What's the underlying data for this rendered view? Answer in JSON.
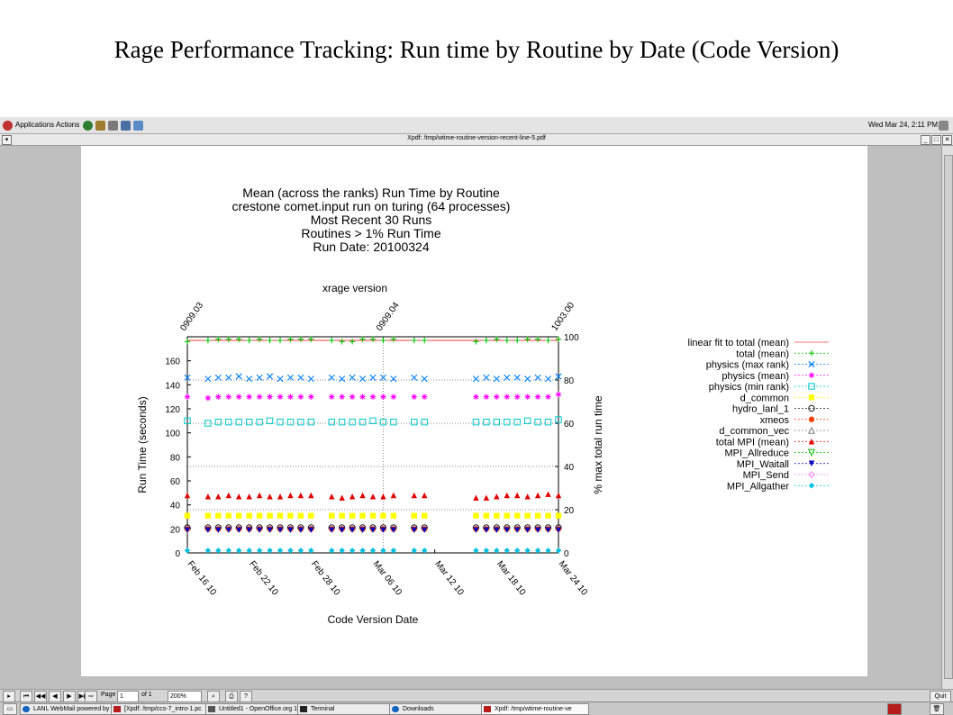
{
  "slide": {
    "title": "Rage Performance Tracking: Run time by Routine by Date (Code Version)"
  },
  "desktop": {
    "menu": [
      "Applications",
      "Actions"
    ],
    "clock": "Wed Mar 24,  2:11 PM"
  },
  "window": {
    "title": "Xpdf: /tmp/wtime-routine-version-recent-line-5.pdf"
  },
  "viewer": {
    "page_label": "Page",
    "page_value": "1",
    "of_label": "of 1",
    "zoom": "200%",
    "help": "?",
    "quit": "Quit"
  },
  "taskbar": {
    "items": [
      "LANL WebMail powered by",
      "[Xpdf: /tmp/ccs-7_intro-1.pc",
      "Untitled1 - OpenOffice.org 1",
      "Terminal",
      "Downloads",
      "Xpdf: /tmp/wtime-routine-ve"
    ]
  },
  "chart_data": {
    "type": "scatter",
    "title_lines": [
      "Mean (across the ranks) Run Time by Routine",
      "crestone comet.input run on turing (64 processes)",
      "Most Recent 30 Runs",
      "Routines > 1% Run Time",
      "Run Date: 20100324"
    ],
    "top_axis_label": "xrage version",
    "top_ticks": [
      "0909.03",
      "0909.04",
      "1003.00"
    ],
    "xlabel": "Code Version Date",
    "ylabel": "Run Time (seconds)",
    "y2label": "% max total run time",
    "x_ticks": [
      "Feb 16 10",
      "Feb 22 10",
      "Feb 28 10",
      "Mar 06 10",
      "Mar 12 10",
      "Mar 18 10",
      "Mar 24 10"
    ],
    "xlim": [
      0,
      36
    ],
    "ylim": [
      0,
      180
    ],
    "y_ticks": [
      0,
      20,
      40,
      60,
      80,
      100,
      120,
      140,
      160
    ],
    "y2lim": [
      0,
      100
    ],
    "y2_ticks": [
      0,
      20,
      40,
      60,
      80,
      100
    ],
    "grid": true,
    "legend_position": "right",
    "x": [
      0,
      2,
      3,
      4,
      5,
      6,
      7,
      8,
      9,
      10,
      11,
      12,
      14,
      15,
      16,
      17,
      18,
      19,
      20,
      22,
      23,
      28,
      29,
      30,
      31,
      32,
      33,
      34,
      35,
      36
    ],
    "series": [
      {
        "name": "linear fit to total (mean)",
        "marker": "line",
        "color": "#ff4040",
        "values": [
          177,
          null,
          null,
          null,
          null,
          null,
          null,
          null,
          null,
          null,
          null,
          null,
          null,
          null,
          null,
          null,
          null,
          null,
          null,
          null,
          null,
          null,
          null,
          null,
          null,
          null,
          null,
          null,
          null,
          177
        ]
      },
      {
        "name": "total (mean)",
        "marker": "plus",
        "color": "#00c000",
        "values": [
          176,
          177,
          178,
          178,
          178,
          177,
          178,
          177,
          177,
          178,
          178,
          178,
          177,
          176,
          176,
          178,
          178,
          177,
          178,
          177,
          177,
          176,
          177,
          178,
          177,
          177,
          178,
          178,
          177,
          178
        ]
      },
      {
        "name": "physics (max rank)",
        "marker": "x",
        "color": "#0080ff",
        "values": [
          146,
          145,
          146,
          146,
          147,
          145,
          146,
          147,
          145,
          146,
          146,
          145,
          146,
          145,
          146,
          145,
          146,
          146,
          145,
          146,
          145,
          145,
          146,
          145,
          146,
          146,
          145,
          146,
          145,
          147
        ]
      },
      {
        "name": "physics (mean)",
        "marker": "star",
        "color": "#ff00ff",
        "values": [
          130,
          129,
          130,
          130,
          130,
          130,
          130,
          130,
          130,
          130,
          130,
          130,
          130,
          130,
          130,
          130,
          130,
          130,
          130,
          130,
          130,
          130,
          130,
          130,
          130,
          130,
          130,
          130,
          130,
          132
        ]
      },
      {
        "name": "physics (min rank)",
        "marker": "square-open",
        "color": "#00c8c8",
        "values": [
          110,
          108,
          109,
          109,
          109,
          109,
          109,
          110,
          109,
          109,
          109,
          109,
          109,
          109,
          109,
          109,
          110,
          109,
          109,
          109,
          109,
          109,
          109,
          109,
          109,
          109,
          110,
          109,
          109,
          111
        ]
      },
      {
        "name": "d_common",
        "marker": "square",
        "color": "#ffff00",
        "values": [
          31,
          31,
          31,
          31,
          31,
          31,
          31,
          31,
          31,
          31,
          31,
          31,
          31,
          31,
          31,
          31,
          31,
          31,
          31,
          31,
          31,
          31,
          31,
          31,
          31,
          31,
          31,
          31,
          31,
          31
        ]
      },
      {
        "name": "hydro_lanl_1",
        "marker": "circle-open",
        "color": "#202020",
        "values": [
          21,
          21,
          21,
          21,
          21,
          21,
          21,
          21,
          21,
          21,
          21,
          21,
          21,
          21,
          21,
          21,
          21,
          21,
          21,
          21,
          21,
          21,
          21,
          21,
          21,
          21,
          21,
          21,
          21,
          21
        ]
      },
      {
        "name": "xmeos",
        "marker": "circle",
        "color": "#ff4000",
        "values": [
          20,
          20,
          20,
          20,
          20,
          20,
          20,
          20,
          20,
          20,
          20,
          20,
          20,
          20,
          20,
          20,
          20,
          20,
          20,
          20,
          20,
          20,
          20,
          20,
          20,
          20,
          20,
          20,
          20,
          20
        ]
      },
      {
        "name": "d_common_vec",
        "marker": "triangle-open",
        "color": "#808080",
        "values": [
          null,
          null,
          null,
          null,
          null,
          null,
          null,
          null,
          null,
          null,
          null,
          null,
          null,
          null,
          null,
          null,
          null,
          null,
          null,
          null,
          null,
          null,
          null,
          null,
          null,
          null,
          null,
          null,
          null,
          null
        ]
      },
      {
        "name": "total MPI (mean)",
        "marker": "triangle",
        "color": "#e00000",
        "values": [
          48,
          47,
          47,
          48,
          47,
          47,
          48,
          47,
          47,
          48,
          48,
          48,
          47,
          46,
          47,
          48,
          47,
          47,
          48,
          48,
          48,
          46,
          46,
          47,
          48,
          48,
          47,
          48,
          49,
          48
        ]
      },
      {
        "name": "MPI_Allreduce",
        "marker": "triangle-down-open",
        "color": "#00c000",
        "values": [
          null,
          null,
          null,
          null,
          null,
          null,
          null,
          null,
          null,
          null,
          null,
          null,
          null,
          null,
          null,
          null,
          null,
          null,
          null,
          null,
          null,
          null,
          null,
          null,
          null,
          null,
          null,
          null,
          null,
          null
        ]
      },
      {
        "name": "MPI_Waitall",
        "marker": "triangle-down",
        "color": "#0000c0",
        "values": [
          19,
          19,
          19,
          19,
          19,
          19,
          19,
          19,
          19,
          19,
          19,
          19,
          19,
          19,
          19,
          19,
          19,
          19,
          19,
          19,
          19,
          19,
          19,
          19,
          19,
          19,
          19,
          19,
          19,
          19
        ]
      },
      {
        "name": "MPI_Send",
        "marker": "diamond-open",
        "color": "#ff80ff",
        "values": [
          null,
          null,
          null,
          null,
          null,
          null,
          null,
          null,
          null,
          null,
          null,
          null,
          null,
          null,
          null,
          null,
          null,
          null,
          null,
          null,
          null,
          null,
          null,
          null,
          null,
          null,
          null,
          null,
          null,
          null
        ]
      },
      {
        "name": "MPI_Allgather",
        "marker": "diamond",
        "color": "#00c0e0",
        "values": [
          2,
          2,
          2,
          2,
          2,
          2,
          2,
          2,
          2,
          2,
          2,
          2,
          2,
          2,
          2,
          2,
          2,
          2,
          2,
          2,
          2,
          2,
          2,
          2,
          2,
          2,
          2,
          2,
          2,
          2
        ]
      }
    ]
  }
}
